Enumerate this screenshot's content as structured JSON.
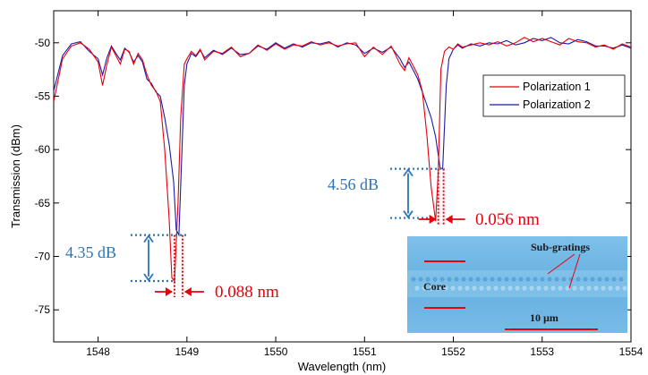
{
  "chart_data": {
    "type": "line",
    "title": "",
    "xlabel": "Wavelength (nm)",
    "ylabel": "Transmission (dBm)",
    "xlim": [
      1547.5,
      1554
    ],
    "ylim": [
      -78,
      -47
    ],
    "xticks": [
      1548,
      1549,
      1550,
      1551,
      1552,
      1553,
      1554
    ],
    "yticks": [
      -50,
      -55,
      -60,
      -65,
      -70,
      -75
    ],
    "xtick_labels": [
      "1548",
      "1549",
      "1550",
      "1551",
      "1552",
      "1553",
      "1554"
    ],
    "ytick_labels": [
      "-50",
      "-55",
      "-60",
      "-65",
      "-70",
      "-75"
    ],
    "grid": false,
    "legend": {
      "position": "top-right"
    },
    "series": [
      {
        "name": "Polarization 1",
        "color": "#e8000b",
        "x": [
          1547.5,
          1547.6,
          1547.7,
          1547.8,
          1547.9,
          1548.0,
          1548.05,
          1548.1,
          1548.15,
          1548.2,
          1548.25,
          1548.3,
          1548.35,
          1548.4,
          1548.45,
          1548.5,
          1548.55,
          1548.6,
          1548.65,
          1548.7,
          1548.75,
          1548.8,
          1548.83,
          1548.86,
          1548.9,
          1548.93,
          1548.97,
          1549.0,
          1549.05,
          1549.1,
          1549.15,
          1549.2,
          1549.3,
          1549.4,
          1549.5,
          1549.6,
          1549.7,
          1549.8,
          1549.9,
          1550.0,
          1550.1,
          1550.2,
          1550.3,
          1550.4,
          1550.5,
          1550.6,
          1550.7,
          1550.8,
          1550.9,
          1551.0,
          1551.1,
          1551.2,
          1551.3,
          1551.4,
          1551.45,
          1551.5,
          1551.55,
          1551.6,
          1551.65,
          1551.7,
          1551.75,
          1551.8,
          1551.83,
          1551.86,
          1551.9,
          1551.95,
          1552.0,
          1552.05,
          1552.1,
          1552.2,
          1552.3,
          1552.4,
          1552.5,
          1552.6,
          1552.7,
          1552.8,
          1552.9,
          1553.0,
          1553.1,
          1553.2,
          1553.3,
          1553.4,
          1553.5,
          1553.6,
          1553.7,
          1553.8,
          1553.9,
          1554.0
        ],
        "y": [
          -55.5,
          -51.5,
          -50.3,
          -50.0,
          -50.6,
          -51.8,
          -54.0,
          -52.0,
          -50.4,
          -51.2,
          -52.0,
          -50.6,
          -50.8,
          -52.0,
          -51.0,
          -51.6,
          -53.0,
          -54.0,
          -54.5,
          -55.5,
          -60.0,
          -66.5,
          -72.0,
          -72.3,
          -65.0,
          -57.0,
          -52.0,
          -51.5,
          -50.8,
          -51.2,
          -50.6,
          -51.6,
          -50.8,
          -51.0,
          -50.4,
          -51.3,
          -51.0,
          -50.2,
          -50.7,
          -50.1,
          -50.6,
          -50.2,
          -50.3,
          -49.9,
          -50.2,
          -50.0,
          -50.3,
          -50.1,
          -50.0,
          -51.3,
          -50.4,
          -51.1,
          -50.3,
          -52.0,
          -52.6,
          -51.4,
          -52.2,
          -53.0,
          -54.5,
          -58.5,
          -63.5,
          -66.7,
          -62.0,
          -52.5,
          -50.8,
          -50.4,
          -50.6,
          -50.1,
          -50.4,
          -50.2,
          -50.0,
          -50.2,
          -49.9,
          -50.3,
          -50.0,
          -49.5,
          -49.9,
          -49.6,
          -49.9,
          -50.2,
          -49.6,
          -49.9,
          -50.0,
          -50.4,
          -50.2,
          -50.6,
          -50.1,
          -50.4
        ]
      },
      {
        "name": "Polarization 2",
        "color": "#1a1aa8",
        "x": [
          1547.5,
          1547.6,
          1547.7,
          1547.8,
          1547.9,
          1548.0,
          1548.05,
          1548.1,
          1548.15,
          1548.2,
          1548.25,
          1548.3,
          1548.35,
          1548.4,
          1548.45,
          1548.5,
          1548.55,
          1548.6,
          1548.65,
          1548.7,
          1548.75,
          1548.8,
          1548.85,
          1548.88,
          1548.91,
          1548.94,
          1548.97,
          1549.0,
          1549.05,
          1549.1,
          1549.15,
          1549.2,
          1549.3,
          1549.4,
          1549.5,
          1549.6,
          1549.7,
          1549.8,
          1549.9,
          1550.0,
          1550.1,
          1550.2,
          1550.3,
          1550.4,
          1550.5,
          1550.6,
          1550.7,
          1550.8,
          1550.9,
          1551.0,
          1551.1,
          1551.2,
          1551.3,
          1551.4,
          1551.45,
          1551.5,
          1551.55,
          1551.6,
          1551.65,
          1551.7,
          1551.75,
          1551.8,
          1551.85,
          1551.88,
          1551.92,
          1551.95,
          1552.0,
          1552.05,
          1552.1,
          1552.2,
          1552.3,
          1552.4,
          1552.5,
          1552.6,
          1552.7,
          1552.8,
          1552.9,
          1553.0,
          1553.1,
          1553.2,
          1553.3,
          1553.4,
          1553.5,
          1553.6,
          1553.7,
          1553.8,
          1553.9,
          1554.0
        ],
        "y": [
          -54.5,
          -51.2,
          -50.1,
          -49.9,
          -50.8,
          -51.5,
          -53.0,
          -51.4,
          -50.3,
          -51.0,
          -51.6,
          -50.5,
          -50.9,
          -51.8,
          -51.2,
          -51.8,
          -53.4,
          -53.8,
          -54.6,
          -55.0,
          -57.0,
          -59.5,
          -63.0,
          -67.5,
          -68.0,
          -61.0,
          -54.0,
          -52.0,
          -51.0,
          -51.3,
          -50.7,
          -51.4,
          -50.7,
          -51.1,
          -50.5,
          -51.1,
          -51.0,
          -50.3,
          -50.6,
          -50.0,
          -50.5,
          -50.1,
          -50.4,
          -50.0,
          -50.1,
          -49.9,
          -50.4,
          -50.0,
          -50.2,
          -51.0,
          -50.5,
          -50.9,
          -50.4,
          -51.5,
          -52.3,
          -51.8,
          -52.6,
          -53.4,
          -54.6,
          -55.8,
          -57.0,
          -58.8,
          -61.7,
          -61.8,
          -54.0,
          -51.5,
          -50.6,
          -50.2,
          -50.5,
          -50.1,
          -50.3,
          -50.0,
          -50.1,
          -49.8,
          -50.2,
          -50.0,
          -49.6,
          -49.8,
          -49.5,
          -50.0,
          -50.1,
          -49.7,
          -49.9,
          -50.3,
          -50.3,
          -50.5,
          -50.2,
          -50.5
        ]
      }
    ],
    "annotations": [
      {
        "text": "4.35 dB",
        "color": "#2e74b5",
        "x_span": [
          1548.85,
          1549.0
        ],
        "y_top": -68.0,
        "y_bottom": -72.3
      },
      {
        "text": "4.56 dB",
        "color": "#2e74b5",
        "x_span": [
          1551.75,
          1551.9
        ],
        "y_top": -61.8,
        "y_bottom": -66.4
      },
      {
        "text": "0.088 nm",
        "color": "#e8000b",
        "x_left": 1548.86,
        "x_right": 1548.95
      },
      {
        "text": "0.056 nm",
        "color": "#e8000b",
        "x_left": 1551.83,
        "x_right": 1551.89
      }
    ],
    "inset": {
      "labels": [
        "Sub-gratings",
        "Core",
        "10  µm"
      ]
    }
  }
}
